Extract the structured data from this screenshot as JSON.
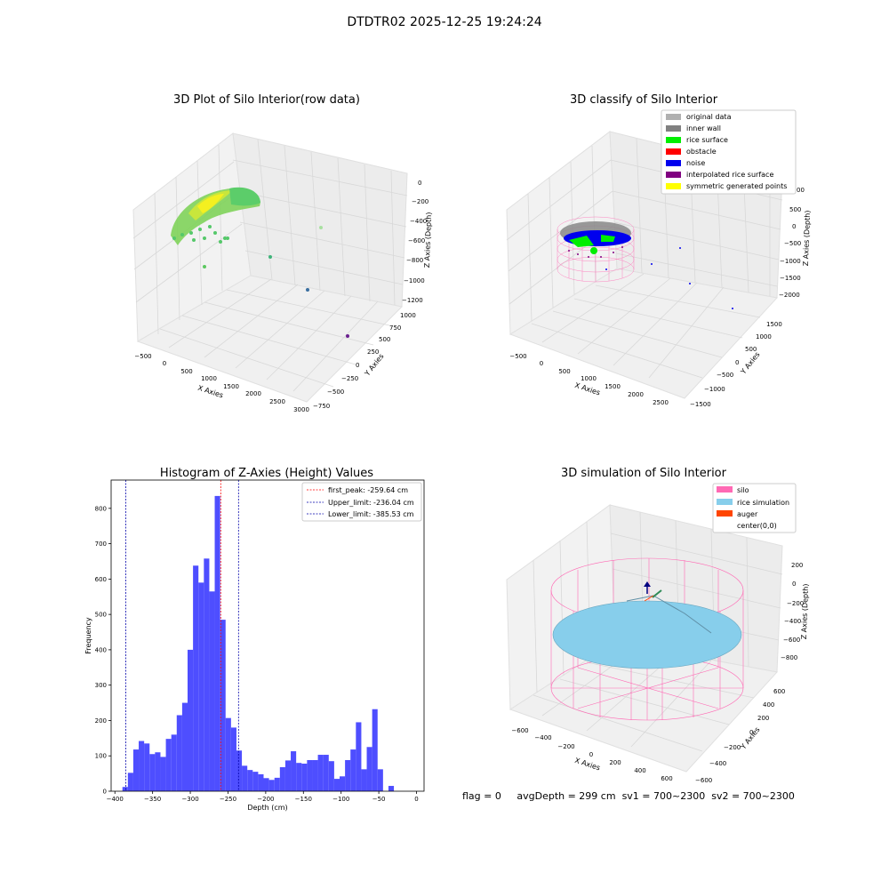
{
  "title": "DTDTR02 2025-12-25 19:24:24",
  "panels": {
    "raw": {
      "title": "3D Plot of Silo Interior(row data)",
      "xlabel": "X Axies",
      "ylabel": "Y Axies",
      "zlabel": "Z Axies (Depth)",
      "xticks": [
        "−500",
        "0",
        "500",
        "1000",
        "1500",
        "2000",
        "2500",
        "3000"
      ],
      "yticks": [
        "−750",
        "−500",
        "−250",
        "0",
        "250",
        "500",
        "750",
        "1000"
      ],
      "zticks": [
        "0",
        "−200",
        "−400",
        "−600",
        "−800",
        "−1000",
        "−1200"
      ]
    },
    "classify": {
      "title": "3D classify of Silo Interior",
      "xlabel": "X Axies",
      "ylabel": "Y Axies",
      "zlabel": "Z Axies (Depth)",
      "xticks": [
        "−500",
        "0",
        "500",
        "1000",
        "1500",
        "2000",
        "2500"
      ],
      "yticks": [
        "−1500",
        "−1000",
        "−500",
        "0",
        "500",
        "1000",
        "1500"
      ],
      "zticks": [
        "500",
        "0",
        "−500",
        "−1000",
        "−1500",
        "−2000"
      ],
      "ztick_partial": "00",
      "legend": [
        {
          "label": "original data",
          "color": "#b0b0b0"
        },
        {
          "label": "inner wall",
          "color": "#808080"
        },
        {
          "label": "rice surface",
          "color": "#00ee00"
        },
        {
          "label": "obstacle",
          "color": "#ff0000"
        },
        {
          "label": "noise",
          "color": "#0000ee"
        },
        {
          "label": "interpolated rice surface",
          "color": "#800080"
        },
        {
          "label": "symmetric generated points",
          "color": "#ffff00"
        }
      ]
    },
    "simulation": {
      "title": "3D simulation of Silo Interior",
      "xlabel": "X Axies",
      "ylabel": "Y Axies",
      "zlabel": "Z Axies (Depth)",
      "xticks": [
        "−600",
        "−400",
        "−200",
        "0",
        "200",
        "400",
        "600"
      ],
      "yticks": [
        "−600",
        "−400",
        "−200",
        "0",
        "200",
        "400",
        "600"
      ],
      "zticks": [
        "200",
        "0",
        "−200",
        "−400",
        "−600",
        "−800"
      ],
      "legend": [
        {
          "label": "silo",
          "color": "#ff69b4"
        },
        {
          "label": "rice simulation",
          "color": "#87ceeb"
        },
        {
          "label": "auger",
          "color": "#ff4500"
        },
        {
          "label": "center(0,0)",
          "color": ""
        }
      ]
    }
  },
  "status": {
    "flag": "flag = 0",
    "avg_depth": "avgDepth = 299 cm",
    "sv1": "sv1 = 700~2300",
    "sv2": "sv2 = 700~2300"
  },
  "chart_data": {
    "type": "bar",
    "title": "Histogram of Z-Axies (Height) Values",
    "xlabel": "Depth (cm)",
    "ylabel": "Frequency",
    "xlim": [
      -405,
      10
    ],
    "ylim": [
      0,
      880
    ],
    "xticks": [
      -400,
      -350,
      -300,
      -250,
      -200,
      -150,
      -100,
      -50,
      0
    ],
    "xtick_labels": [
      "−400",
      "−350",
      "−300",
      "−250",
      "−200",
      "−150",
      "−100",
      "−50",
      "0"
    ],
    "yticks": [
      0,
      100,
      200,
      300,
      400,
      500,
      600,
      700,
      800
    ],
    "bin_start": -390,
    "bin_width": 7.2,
    "values": [
      12,
      52,
      118,
      142,
      135,
      105,
      110,
      97,
      148,
      160,
      215,
      250,
      400,
      638,
      590,
      658,
      565,
      835,
      485,
      207,
      180,
      115,
      72,
      60,
      55,
      48,
      37,
      32,
      38,
      68,
      87,
      113,
      80,
      78,
      88,
      88,
      103,
      103,
      85,
      35,
      42,
      88,
      118,
      195,
      62,
      125,
      232,
      62,
      0,
      15
    ],
    "bar_color": "#4444ff",
    "lines": [
      {
        "label": "first_peak: -259.64 cm",
        "x": -259.64,
        "color": "#ff0000"
      },
      {
        "label": "Upper_limit: -236.04 cm",
        "x": -236.04,
        "color": "#0000aa"
      },
      {
        "label": "Lower_limit: -385.53 cm",
        "x": -385.53,
        "color": "#0000aa"
      }
    ],
    "legend_position": "upper right"
  }
}
